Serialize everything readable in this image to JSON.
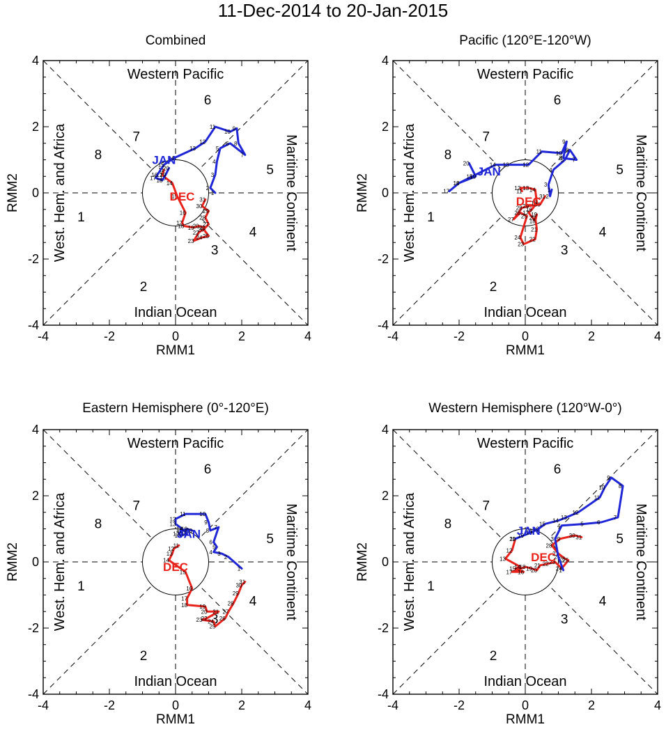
{
  "title": "11-Dec-2014 to 20-Jan-2015",
  "colors": {
    "dec": "#e8231b",
    "jan": "#1f26d6",
    "axis": "#000000"
  },
  "chart_data": [
    {
      "type": "line",
      "title": "Combined",
      "xlabel": "RMM1",
      "ylabel": "RMM2",
      "xlim": [
        -4,
        4
      ],
      "ylim": [
        -4,
        4
      ],
      "xticks": [
        "-4",
        "-2",
        "0",
        "2",
        "4"
      ],
      "yticks": [
        "-4",
        "-2",
        "0",
        "2",
        "4"
      ],
      "phase_numbers": [
        "1",
        "2",
        "3",
        "4",
        "5",
        "6",
        "7",
        "8"
      ],
      "region_labels": {
        "top": "Western Pacific",
        "bottom": "Indian Ocean",
        "left": "West. Hem. and Africa",
        "right": "Maritime Continent"
      },
      "series": [
        {
          "name": "DEC",
          "label_pos": [
            0.2,
            -0.1
          ],
          "days": [
            "11",
            "12",
            "13",
            "14",
            "15",
            "16",
            "17",
            "18",
            "19",
            "20",
            "21",
            "22",
            "23",
            "24",
            "25",
            "26",
            "27",
            "28",
            "29",
            "30",
            "31"
          ],
          "points": [
            [
              -0.35,
              0.7
            ],
            [
              -0.4,
              0.55
            ],
            [
              -0.3,
              0.45
            ],
            [
              -0.1,
              0.3
            ],
            [
              0.05,
              -0.1
            ],
            [
              0.3,
              -0.6
            ],
            [
              0.2,
              -0.9
            ],
            [
              0.25,
              -1.0
            ],
            [
              0.55,
              -1.05
            ],
            [
              0.7,
              -1.0
            ],
            [
              0.9,
              -1.05
            ],
            [
              0.7,
              -1.2
            ],
            [
              0.55,
              -1.45
            ],
            [
              0.8,
              -1.35
            ],
            [
              1.0,
              -1.3
            ],
            [
              0.85,
              -1.1
            ],
            [
              1.0,
              -0.95
            ],
            [
              0.9,
              -0.75
            ],
            [
              1.0,
              -0.55
            ],
            [
              0.8,
              -0.4
            ],
            [
              0.9,
              -0.2
            ]
          ]
        },
        {
          "name": "JAN",
          "label_pos": [
            -0.35,
            1.0
          ],
          "days": [
            "1",
            "2",
            "3",
            "4",
            "5",
            "6",
            "7",
            "8",
            "9",
            "10",
            "11",
            "12",
            "13",
            "14",
            "15",
            "16",
            "17",
            "18",
            "19",
            "20"
          ],
          "points": [
            [
              1.2,
              0.0
            ],
            [
              1.05,
              0.15
            ],
            [
              1.2,
              0.55
            ],
            [
              1.25,
              0.95
            ],
            [
              1.35,
              1.35
            ],
            [
              1.65,
              1.5
            ],
            [
              2.1,
              1.15
            ],
            [
              1.9,
              1.5
            ],
            [
              1.85,
              1.95
            ],
            [
              1.65,
              1.85
            ],
            [
              1.2,
              2.0
            ],
            [
              0.9,
              1.55
            ],
            [
              0.6,
              1.35
            ],
            [
              -0.05,
              1.05
            ],
            [
              -0.35,
              0.85
            ],
            [
              -0.55,
              0.55
            ],
            [
              -0.6,
              0.45
            ],
            [
              -0.4,
              0.38
            ],
            [
              -0.3,
              0.55
            ],
            [
              -0.2,
              0.75
            ]
          ]
        }
      ]
    },
    {
      "type": "line",
      "title": "Pacific (120°E-120°W)",
      "xlabel": "RMM1",
      "ylabel": "RMM2",
      "xlim": [
        -4,
        4
      ],
      "ylim": [
        -4,
        4
      ],
      "xticks": [
        "-4",
        "-2",
        "0",
        "2",
        "4"
      ],
      "yticks": [
        "-4",
        "-2",
        "0",
        "2",
        "4"
      ],
      "phase_numbers": [
        "1",
        "2",
        "3",
        "4",
        "5",
        "6",
        "7",
        "8"
      ],
      "region_labels": {
        "top": "Western Pacific",
        "bottom": "Indian Ocean",
        "left": "West. Hem. and Africa",
        "right": "Maritime Continent"
      },
      "series": [
        {
          "name": "DEC",
          "label_pos": [
            0.1,
            -0.25
          ],
          "days": [
            "11",
            "12",
            "13",
            "14",
            "15",
            "16",
            "17",
            "18",
            "19",
            "20",
            "21",
            "22",
            "23",
            "24",
            "25",
            "26",
            "27",
            "28",
            "29",
            "30",
            "31"
          ],
          "points": [
            [
              -0.1,
              0.05
            ],
            [
              -0.15,
              0.15
            ],
            [
              0.1,
              0.15
            ],
            [
              0.3,
              0.1
            ],
            [
              0.35,
              -0.3
            ],
            [
              0.2,
              -0.5
            ],
            [
              0.1,
              -0.6
            ],
            [
              0.3,
              -0.85
            ],
            [
              0.35,
              -0.65
            ],
            [
              0.3,
              -0.75
            ],
            [
              0.35,
              -1.1
            ],
            [
              0.3,
              -1.4
            ],
            [
              -0.05,
              -1.55
            ],
            [
              -0.15,
              -1.35
            ],
            [
              0.05,
              -0.7
            ],
            [
              -0.15,
              -0.6
            ],
            [
              -0.35,
              -0.8
            ],
            [
              -0.1,
              -0.45
            ],
            [
              0.1,
              -0.4
            ],
            [
              0.45,
              -0.35
            ],
            [
              0.6,
              -0.1
            ]
          ]
        },
        {
          "name": "JAN",
          "label_pos": [
            -1.1,
            0.65
          ],
          "days": [
            "1",
            "2",
            "3",
            "4",
            "5",
            "6",
            "7",
            "8",
            "9",
            "10",
            "11",
            "12",
            "13",
            "14",
            "15",
            "16",
            "17",
            "18",
            "19",
            "20"
          ],
          "points": [
            [
              0.8,
              0.1
            ],
            [
              0.75,
              -0.1
            ],
            [
              0.7,
              0.25
            ],
            [
              0.85,
              0.7
            ],
            [
              1.2,
              1.0
            ],
            [
              1.35,
              1.3
            ],
            [
              1.55,
              1.0
            ],
            [
              1.15,
              1.05
            ],
            [
              1.25,
              1.55
            ],
            [
              1.1,
              1.2
            ],
            [
              0.5,
              1.25
            ],
            [
              0.1,
              0.85
            ],
            [
              -0.5,
              0.85
            ],
            [
              -0.9,
              0.85
            ],
            [
              -1.6,
              0.5
            ],
            [
              -2.0,
              0.3
            ],
            [
              -2.3,
              0.05
            ],
            [
              -2.0,
              0.3
            ],
            [
              -1.5,
              0.5
            ],
            [
              -1.7,
              0.9
            ]
          ]
        }
      ]
    },
    {
      "type": "line",
      "title": "Eastern Hemisphere (0°-120°E)",
      "xlabel": "RMM1",
      "ylabel": "RMM2",
      "xlim": [
        -4,
        4
      ],
      "ylim": [
        -4,
        4
      ],
      "xticks": [
        "-4",
        "-2",
        "0",
        "2",
        "4"
      ],
      "yticks": [
        "-4",
        "-2",
        "0",
        "2",
        "4"
      ],
      "phase_numbers": [
        "1",
        "2",
        "3",
        "4",
        "5",
        "6",
        "7",
        "8"
      ],
      "region_labels": {
        "top": "Western Pacific",
        "bottom": "Indian Ocean",
        "left": "West. Hem. and Africa",
        "right": "Maritime Continent"
      },
      "series": [
        {
          "name": "DEC",
          "label_pos": [
            0.0,
            -0.15
          ],
          "days": [
            "11",
            "12",
            "13",
            "14",
            "15",
            "16",
            "17",
            "18",
            "19",
            "20",
            "21",
            "22",
            "23",
            "24",
            "25",
            "26",
            "27",
            "28",
            "29",
            "30",
            "31"
          ],
          "points": [
            [
              0.1,
              0.5
            ],
            [
              -0.05,
              0.4
            ],
            [
              -0.1,
              0.25
            ],
            [
              -0.2,
              0.05
            ],
            [
              0.3,
              -0.3
            ],
            [
              0.5,
              -0.8
            ],
            [
              0.35,
              -1.1
            ],
            [
              0.35,
              -1.3
            ],
            [
              0.9,
              -1.35
            ],
            [
              0.95,
              -1.5
            ],
            [
              1.3,
              -1.5
            ],
            [
              0.95,
              -1.7
            ],
            [
              0.8,
              -1.75
            ],
            [
              1.15,
              -1.8
            ],
            [
              1.2,
              -1.95
            ],
            [
              1.5,
              -1.7
            ],
            [
              1.6,
              -1.5
            ],
            [
              1.75,
              -1.25
            ],
            [
              1.9,
              -0.95
            ],
            [
              2.0,
              -0.7
            ],
            [
              2.1,
              -0.6
            ]
          ]
        },
        {
          "name": "JAN",
          "label_pos": [
            0.4,
            0.85
          ],
          "days": [
            "1",
            "2",
            "3",
            "4",
            "5",
            "6",
            "7",
            "8",
            "9",
            "10",
            "11",
            "12",
            "13",
            "14",
            "15",
            "16",
            "17",
            "18",
            "19",
            "20"
          ],
          "points": [
            [
              2.0,
              -0.2
            ],
            [
              1.6,
              0.15
            ],
            [
              1.4,
              0.25
            ],
            [
              1.15,
              0.3
            ],
            [
              1.25,
              0.45
            ],
            [
              1.15,
              0.6
            ],
            [
              1.3,
              1.05
            ],
            [
              1.05,
              0.95
            ],
            [
              1.0,
              1.2
            ],
            [
              0.9,
              1.45
            ],
            [
              0.3,
              1.45
            ],
            [
              0.0,
              1.3
            ],
            [
              0.0,
              1.15
            ],
            [
              0.2,
              1.0
            ],
            [
              0.35,
              0.85
            ],
            [
              0.15,
              0.8
            ],
            [
              0.1,
              0.85
            ],
            [
              0.2,
              0.95
            ],
            [
              0.35,
              1.0
            ],
            [
              0.5,
              0.95
            ]
          ]
        }
      ]
    },
    {
      "type": "line",
      "title": "Western Hemisphere (120°W-0°)",
      "xlabel": "RMM1",
      "ylabel": "RMM2",
      "xlim": [
        -4,
        4
      ],
      "ylim": [
        -4,
        4
      ],
      "xticks": [
        "-4",
        "-2",
        "0",
        "2",
        "4"
      ],
      "yticks": [
        "-4",
        "-2",
        "0",
        "2",
        "4"
      ],
      "phase_numbers": [
        "1",
        "2",
        "3",
        "4",
        "5",
        "6",
        "7",
        "8"
      ],
      "region_labels": {
        "top": "Western Pacific",
        "bottom": "Indian Ocean",
        "left": "West. Hem. and Africa",
        "right": "Maritime Continent"
      },
      "series": [
        {
          "name": "DEC",
          "label_pos": [
            0.55,
            0.15
          ],
          "days": [
            "11",
            "12",
            "13",
            "14",
            "15",
            "16",
            "17",
            "18",
            "19",
            "20",
            "21",
            "22",
            "23",
            "24",
            "25",
            "26",
            "27",
            "28",
            "29",
            "30",
            "31"
          ],
          "points": [
            [
              -0.3,
              0.7
            ],
            [
              -0.4,
              0.35
            ],
            [
              -0.6,
              0.1
            ],
            [
              -0.15,
              -0.15
            ],
            [
              -0.3,
              -0.2
            ],
            [
              -0.05,
              -0.3
            ],
            [
              -0.4,
              -0.3
            ],
            [
              0.0,
              -0.15
            ],
            [
              0.2,
              -0.2
            ],
            [
              0.35,
              -0.25
            ],
            [
              0.45,
              -0.1
            ],
            [
              0.7,
              -0.05
            ],
            [
              0.9,
              0.0
            ],
            [
              1.1,
              -0.2
            ],
            [
              1.3,
              0.05
            ],
            [
              1.2,
              0.1
            ],
            [
              1.0,
              0.25
            ],
            [
              0.8,
              0.5
            ],
            [
              1.05,
              0.7
            ],
            [
              1.5,
              0.8
            ],
            [
              1.7,
              0.75
            ]
          ]
        },
        {
          "name": "JAN",
          "label_pos": [
            0.1,
            0.95
          ],
          "days": [
            "1",
            "2",
            "3",
            "4",
            "5",
            "6",
            "7",
            "8",
            "9",
            "10",
            "11",
            "12",
            "13",
            "14",
            "15",
            "16",
            "17",
            "18",
            "19",
            "20"
          ],
          "points": [
            [
              1.15,
              -0.25
            ],
            [
              1.0,
              0.15
            ],
            [
              0.9,
              0.7
            ],
            [
              1.1,
              1.1
            ],
            [
              1.8,
              1.15
            ],
            [
              2.3,
              1.2
            ],
            [
              2.8,
              1.35
            ],
            [
              2.95,
              2.3
            ],
            [
              2.6,
              2.55
            ],
            [
              2.4,
              2.25
            ],
            [
              2.25,
              1.95
            ],
            [
              1.6,
              1.5
            ],
            [
              1.25,
              1.35
            ],
            [
              1.0,
              1.25
            ],
            [
              0.6,
              1.15
            ],
            [
              0.4,
              1.0
            ],
            [
              0.3,
              0.95
            ],
            [
              0.2,
              0.9
            ],
            [
              -0.05,
              0.8
            ],
            [
              -0.3,
              0.7
            ]
          ]
        }
      ]
    }
  ]
}
